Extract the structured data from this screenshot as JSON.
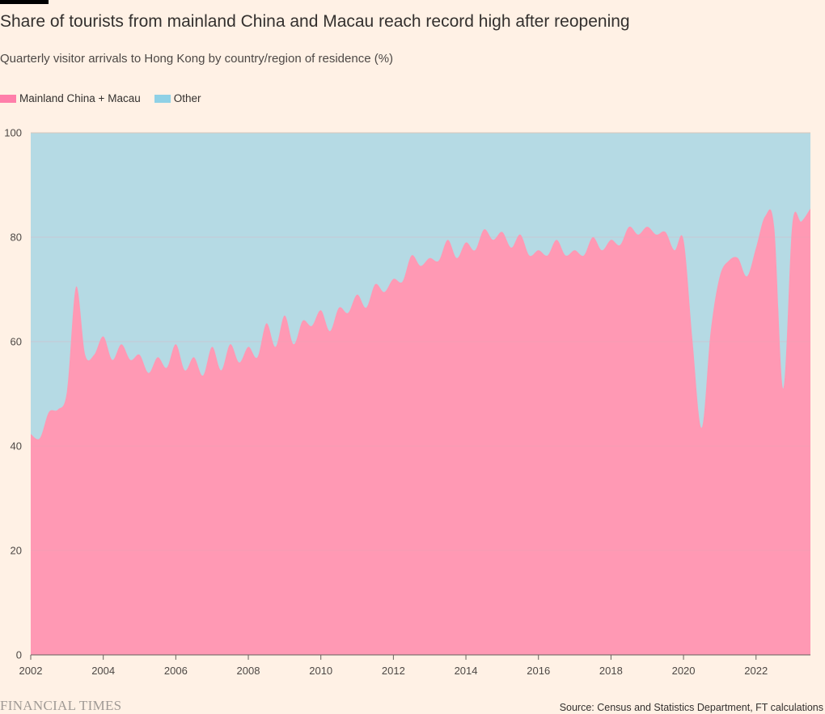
{
  "title": "Share of tourists from mainland China and Macau reach record high after reopening",
  "subtitle": "Quarterly visitor arrivals to Hong Kong by country/region of residence (%)",
  "legend": [
    {
      "label": "Mainland China + Macau",
      "color": "#FF7FAA"
    },
    {
      "label": "Other",
      "color": "#8FD1E6"
    }
  ],
  "source": "Source: Census and Statistics Department, FT calculations",
  "logo_text": "FINANCIAL TIMES",
  "colors": {
    "mainland_fill": "#FF99B4",
    "other_fill": "#B5DAE4",
    "background": "#FFF1E5",
    "gridline": "#E2CDC3",
    "baseline": "#66605C"
  },
  "chart_data": {
    "type": "area",
    "stacked": true,
    "title": "Share of tourists from mainland China and Macau reach record high after reopening",
    "subtitle": "Quarterly visitor arrivals to Hong Kong by country/region of residence (%)",
    "xlabel": "",
    "ylabel": "",
    "xlim": [
      2002.0,
      2023.5
    ],
    "ylim": [
      0,
      100
    ],
    "yticks": [
      0,
      20,
      40,
      60,
      80,
      100
    ],
    "xticks": [
      2002,
      2004,
      2006,
      2008,
      2010,
      2012,
      2014,
      2016,
      2018,
      2020,
      2022
    ],
    "grid": true,
    "legend_position": "top-left",
    "x": [
      2002.0,
      2002.25,
      2002.5,
      2002.75,
      2003.0,
      2003.25,
      2003.5,
      2003.75,
      2004.0,
      2004.25,
      2004.5,
      2004.75,
      2005.0,
      2005.25,
      2005.5,
      2005.75,
      2006.0,
      2006.25,
      2006.5,
      2006.75,
      2007.0,
      2007.25,
      2007.5,
      2007.75,
      2008.0,
      2008.25,
      2008.5,
      2008.75,
      2009.0,
      2009.25,
      2009.5,
      2009.75,
      2010.0,
      2010.25,
      2010.5,
      2010.75,
      2011.0,
      2011.25,
      2011.5,
      2011.75,
      2012.0,
      2012.25,
      2012.5,
      2012.75,
      2013.0,
      2013.25,
      2013.5,
      2013.75,
      2014.0,
      2014.25,
      2014.5,
      2014.75,
      2015.0,
      2015.25,
      2015.5,
      2015.75,
      2016.0,
      2016.25,
      2016.5,
      2016.75,
      2017.0,
      2017.25,
      2017.5,
      2017.75,
      2018.0,
      2018.25,
      2018.5,
      2018.75,
      2019.0,
      2019.25,
      2019.5,
      2019.75,
      2020.0,
      2020.25,
      2020.5,
      2020.75,
      2021.0,
      2021.25,
      2021.5,
      2021.75,
      2022.0,
      2022.25,
      2022.5,
      2022.75,
      2023.0,
      2023.25,
      2023.5
    ],
    "series": [
      {
        "name": "Mainland China + Macau",
        "values": [
          42.3,
          41.5,
          46.5,
          47.0,
          50.5,
          70.5,
          57.5,
          57.5,
          61.0,
          56.5,
          59.5,
          56.5,
          57.5,
          54.0,
          57.0,
          55.0,
          59.5,
          54.5,
          57.0,
          53.5,
          59.0,
          54.5,
          59.5,
          56.0,
          59.0,
          57.0,
          63.5,
          59.0,
          65.0,
          59.5,
          64.0,
          63.0,
          66.0,
          62.0,
          66.5,
          65.5,
          69.0,
          66.5,
          71.0,
          69.5,
          72.0,
          71.5,
          76.5,
          74.5,
          76.0,
          75.5,
          79.5,
          76.0,
          79.0,
          77.5,
          81.5,
          79.5,
          81.0,
          78.0,
          80.5,
          76.5,
          77.5,
          76.5,
          79.5,
          76.5,
          77.5,
          76.5,
          80.0,
          77.5,
          79.5,
          78.5,
          82.0,
          80.5,
          82.0,
          80.5,
          81.0,
          77.5,
          79.5,
          60.0,
          43.5,
          62.0,
          72.5,
          75.5,
          76.0,
          72.5,
          78.0,
          84.0,
          82.0,
          51.0,
          82.5,
          83.0,
          85.5
        ]
      },
      {
        "name": "Other",
        "values": [
          57.7,
          58.5,
          53.5,
          53.0,
          49.5,
          29.5,
          42.5,
          42.5,
          39.0,
          43.5,
          40.5,
          43.5,
          42.5,
          46.0,
          43.0,
          45.0,
          40.5,
          45.5,
          43.0,
          46.5,
          41.0,
          45.5,
          40.5,
          44.0,
          41.0,
          43.0,
          36.5,
          41.0,
          35.0,
          40.5,
          36.0,
          37.0,
          34.0,
          38.0,
          33.5,
          34.5,
          31.0,
          33.5,
          29.0,
          30.5,
          28.0,
          28.5,
          23.5,
          25.5,
          24.0,
          24.5,
          20.5,
          24.0,
          21.0,
          22.5,
          18.5,
          20.5,
          19.0,
          22.0,
          19.5,
          23.5,
          22.5,
          23.5,
          20.5,
          23.5,
          22.5,
          23.5,
          20.0,
          22.5,
          20.5,
          21.5,
          18.0,
          19.5,
          18.0,
          19.5,
          19.0,
          22.5,
          20.5,
          40.0,
          56.5,
          38.0,
          27.5,
          24.5,
          24.0,
          27.5,
          22.0,
          16.0,
          18.0,
          49.0,
          17.5,
          17.0,
          14.5
        ]
      }
    ]
  }
}
